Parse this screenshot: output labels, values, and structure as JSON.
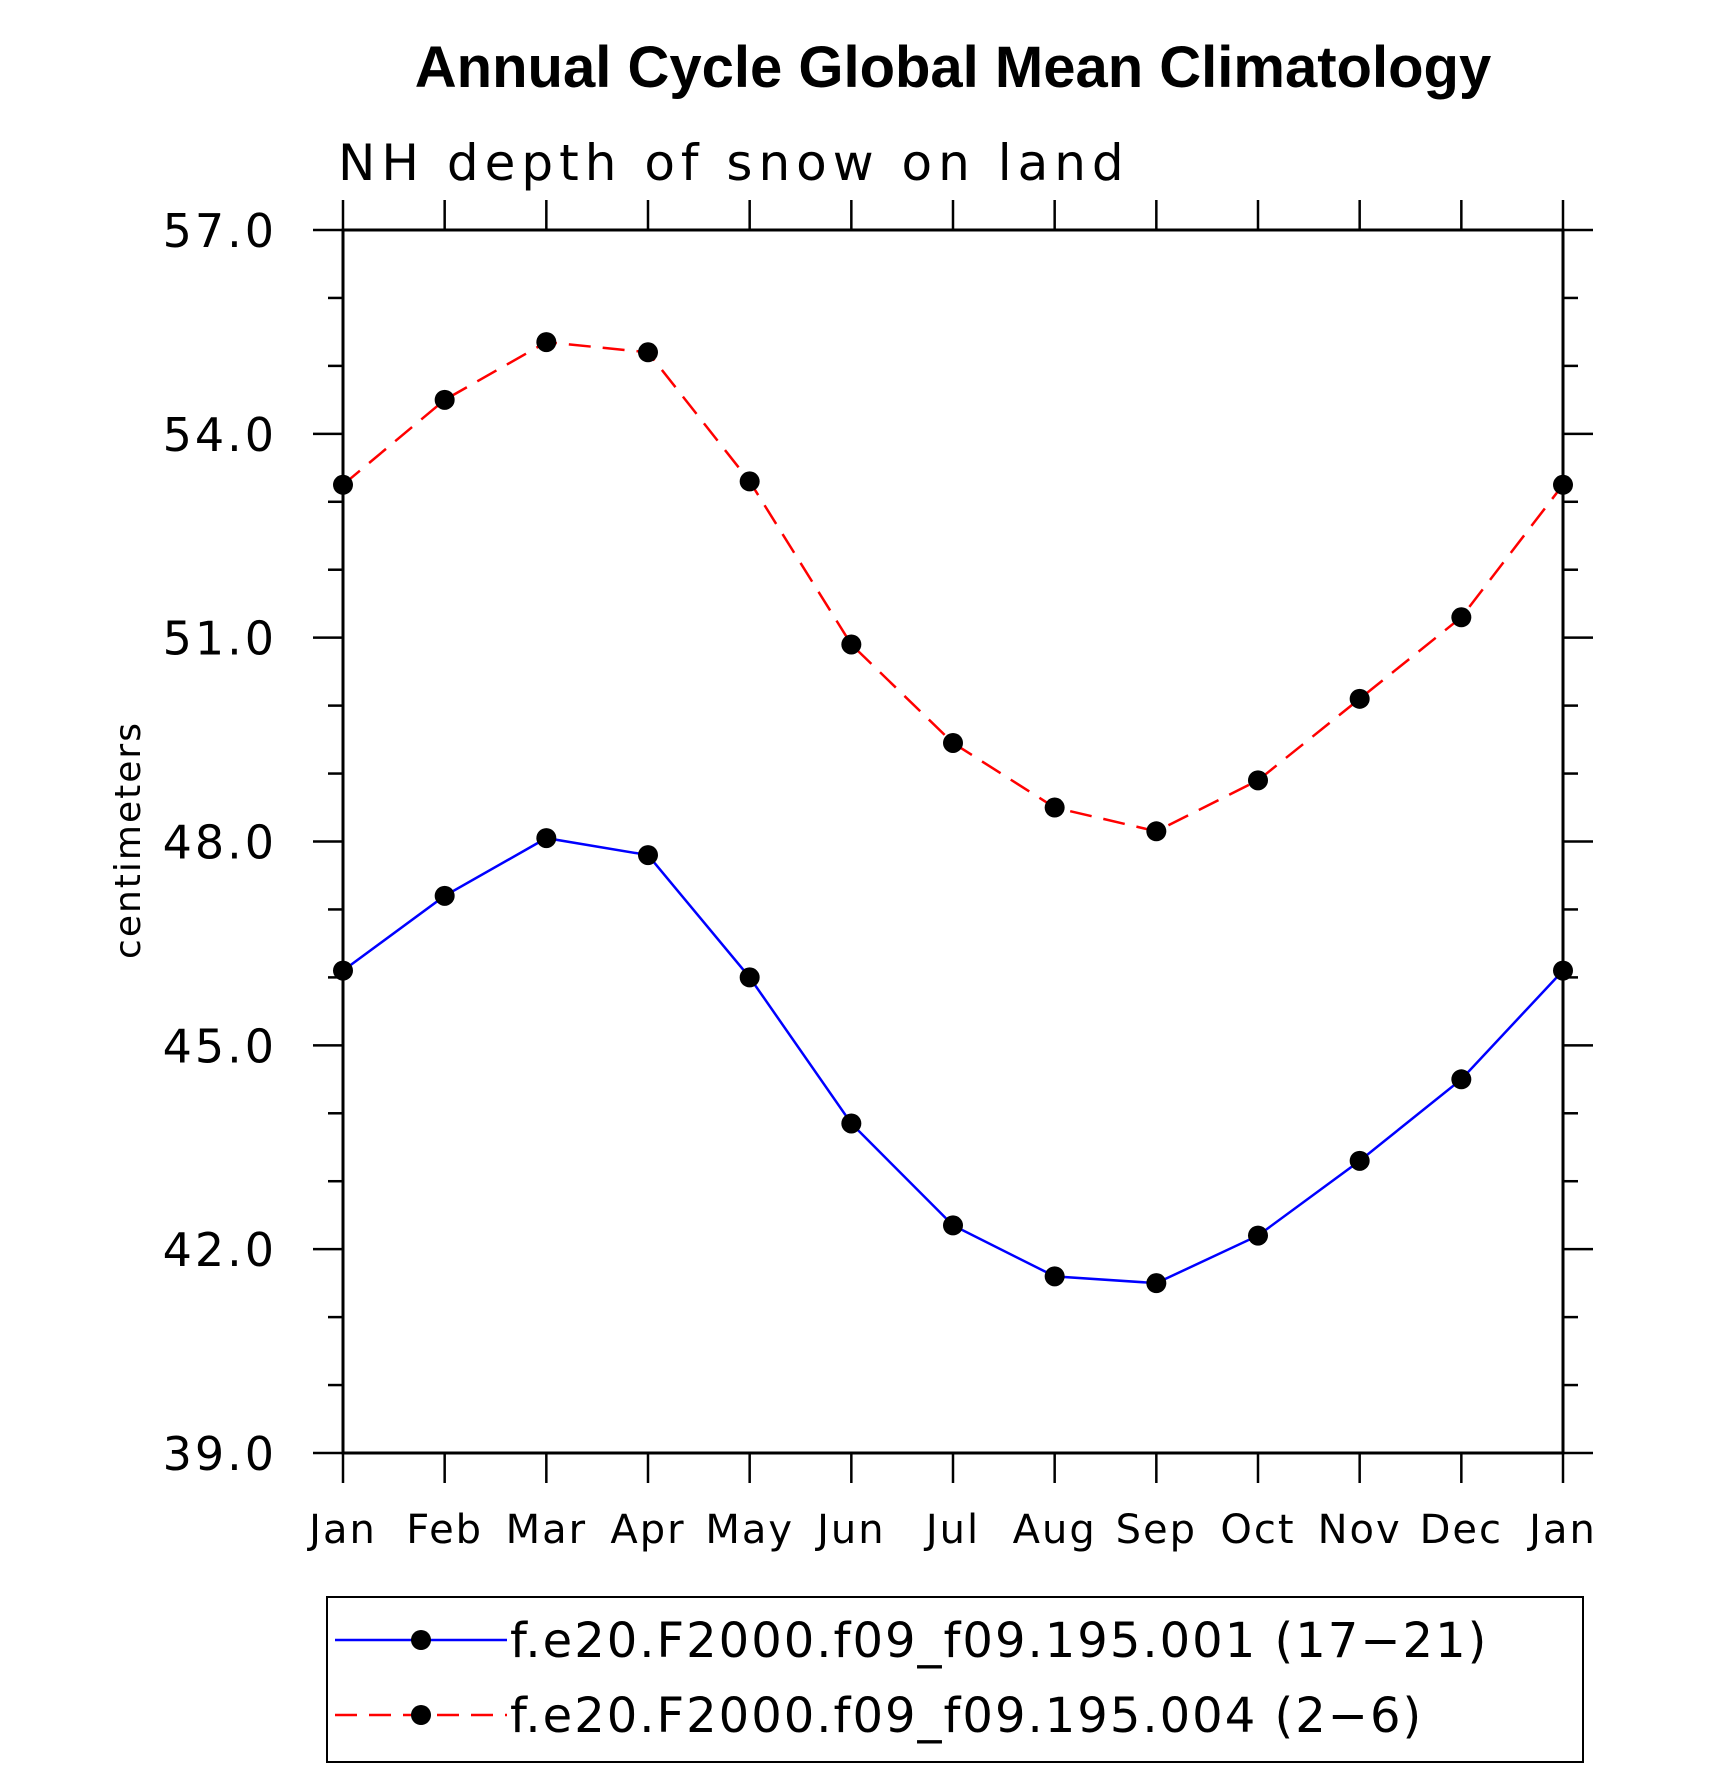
{
  "chart_data": {
    "type": "line",
    "title": "Annual Cycle Global Mean Climatology",
    "subtitle": "NH depth of snow on land",
    "ylabel": "centimeters",
    "xlabel": "",
    "categories": [
      "Jan",
      "Feb",
      "Mar",
      "Apr",
      "May",
      "Jun",
      "Jul",
      "Aug",
      "Sep",
      "Oct",
      "Nov",
      "Dec",
      "Jan"
    ],
    "ylim": [
      39.0,
      57.0
    ],
    "yticks": [
      "39.0",
      "42.0",
      "45.0",
      "48.0",
      "51.0",
      "54.0",
      "57.0"
    ],
    "grid": false,
    "legend_position": "bottom",
    "series": [
      {
        "name": "f.e20.F2000.f09_f09.195.001 (17−21)",
        "color": "#0000ff",
        "line_style": "solid",
        "marker": "filled-circle",
        "values": [
          46.1,
          47.2,
          48.05,
          47.8,
          46.0,
          43.85,
          42.35,
          41.6,
          41.5,
          42.2,
          43.3,
          44.5,
          46.1
        ]
      },
      {
        "name": "f.e20.F2000.f09_f09.195.004 (2−6)",
        "color": "#ff0000",
        "line_style": "dashed",
        "marker": "filled-circle",
        "values": [
          53.25,
          54.5,
          55.35,
          55.2,
          53.3,
          50.9,
          49.45,
          48.5,
          48.15,
          48.9,
          50.1,
          51.3,
          53.25
        ]
      }
    ]
  }
}
